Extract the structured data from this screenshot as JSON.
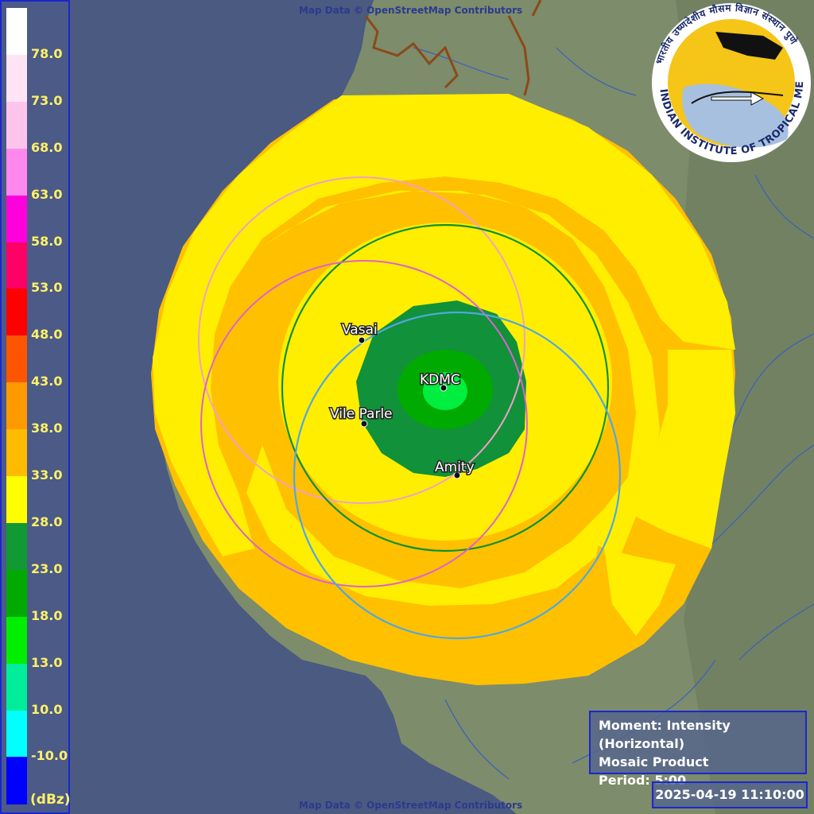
{
  "attribution_top": "Map Data © OpenStreetMap Contributors",
  "attribution_bottom": "Map Data © OpenStreetMap Contributors",
  "legend": {
    "unit": "(dBz)",
    "labels": [
      "78.0",
      "73.0",
      "68.0",
      "63.0",
      "58.0",
      "53.0",
      "48.0",
      "43.0",
      "38.0",
      "33.0",
      "28.0",
      "23.0",
      "18.0",
      "13.0",
      "10.0",
      "-10.0"
    ],
    "colors": [
      "#ffffff",
      "#ffe4f5",
      "#ffc4ec",
      "#ff88ee",
      "#ff00dd",
      "#ff0066",
      "#ff0000",
      "#ff5500",
      "#ff9900",
      "#ffbb00",
      "#ffff00",
      "#119933",
      "#00aa00",
      "#00ee00",
      "#00ee99",
      "#00ffff",
      "#0000ff"
    ]
  },
  "logo": {
    "ring_text": "INDIAN INSTITUTE OF TROPICAL METEOROLOGY PUNE",
    "hindi_text": "भारतीय उष्णदेशीय मौसम विज्ञान संस्थान पुणे"
  },
  "places": [
    {
      "name": "Vasai"
    },
    {
      "name": "KDMC"
    },
    {
      "name": "Vile Parle"
    },
    {
      "name": "Amity"
    }
  ],
  "info": {
    "moment": "Moment: Intensity (Horizontal)",
    "product": "Mosaic Product",
    "period": "Period: 5:00"
  },
  "timestamp": "2025-04-19 11:10:00",
  "colors": {
    "sea": "#4a5a80",
    "land": "#7a8a68",
    "yellow": "#ffff00",
    "orange": "#ffc000",
    "dark_green": "#11913a",
    "green": "#00c000",
    "light_green": "#00ff40"
  }
}
